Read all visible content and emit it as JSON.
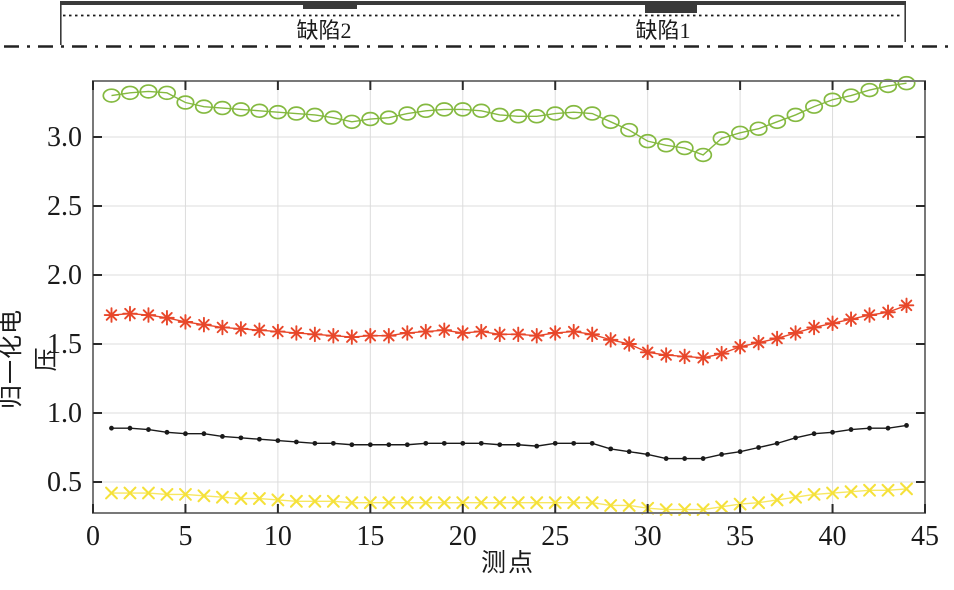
{
  "schematic": {
    "defect1_label": "缺陷1",
    "defect2_label": "缺陷2"
  },
  "colors": {
    "green_series": "#84b940",
    "red_series": "#e8472a",
    "black_series": "#1a1a1a",
    "yellow_series": "#f5e13a",
    "frame": "#787878",
    "grid": "#dcdcdc",
    "tick": "#2a2a2a",
    "defect_fill": "#3a3a3a"
  },
  "chart_data": {
    "type": "line",
    "title": "",
    "xlabel": "测点",
    "ylabel": "归一化电压",
    "xlim": [
      0,
      45
    ],
    "ylim": [
      0.28,
      3.41
    ],
    "xticks": [
      0,
      5,
      10,
      15,
      20,
      25,
      30,
      35,
      40,
      45
    ],
    "yticks": [
      0.5,
      1.0,
      1.5,
      2.0,
      2.5,
      3.0
    ],
    "yticklabels": [
      "0.5",
      "1.0",
      "1.5",
      "2.0",
      "2.5",
      "3.0"
    ],
    "grid": true,
    "legend_position": "none",
    "x": [
      1,
      2,
      3,
      4,
      5,
      6,
      7,
      8,
      9,
      10,
      11,
      12,
      13,
      14,
      15,
      16,
      17,
      18,
      19,
      20,
      21,
      22,
      23,
      24,
      25,
      26,
      27,
      28,
      29,
      30,
      31,
      32,
      33,
      34,
      35,
      36,
      37,
      38,
      39,
      40,
      41,
      42,
      43,
      44
    ],
    "series": [
      {
        "name": "green-circle-series",
        "marker": "circle",
        "color": "#84b940",
        "values": [
          3.3,
          3.32,
          3.33,
          3.32,
          3.25,
          3.22,
          3.21,
          3.2,
          3.19,
          3.18,
          3.17,
          3.16,
          3.14,
          3.11,
          3.13,
          3.14,
          3.17,
          3.19,
          3.2,
          3.2,
          3.19,
          3.16,
          3.15,
          3.15,
          3.17,
          3.18,
          3.17,
          3.11,
          3.05,
          2.97,
          2.94,
          2.92,
          2.87,
          2.99,
          3.03,
          3.06,
          3.11,
          3.16,
          3.22,
          3.27,
          3.3,
          3.34,
          3.37,
          3.39
        ]
      },
      {
        "name": "red-asterisk-series",
        "marker": "asterisk",
        "color": "#e8472a",
        "values": [
          1.71,
          1.72,
          1.71,
          1.69,
          1.66,
          1.64,
          1.62,
          1.61,
          1.6,
          1.59,
          1.58,
          1.57,
          1.56,
          1.55,
          1.56,
          1.56,
          1.58,
          1.59,
          1.6,
          1.58,
          1.59,
          1.57,
          1.57,
          1.56,
          1.58,
          1.59,
          1.57,
          1.53,
          1.5,
          1.44,
          1.42,
          1.41,
          1.4,
          1.43,
          1.48,
          1.51,
          1.54,
          1.58,
          1.62,
          1.65,
          1.68,
          1.71,
          1.73,
          1.78
        ]
      },
      {
        "name": "black-dot-series",
        "marker": "dot",
        "color": "#1a1a1a",
        "values": [
          0.89,
          0.89,
          0.88,
          0.86,
          0.85,
          0.85,
          0.83,
          0.82,
          0.81,
          0.8,
          0.79,
          0.78,
          0.78,
          0.77,
          0.77,
          0.77,
          0.77,
          0.78,
          0.78,
          0.78,
          0.78,
          0.77,
          0.77,
          0.76,
          0.78,
          0.78,
          0.78,
          0.74,
          0.72,
          0.7,
          0.67,
          0.67,
          0.67,
          0.7,
          0.72,
          0.75,
          0.78,
          0.82,
          0.85,
          0.86,
          0.88,
          0.89,
          0.89,
          0.91
        ]
      },
      {
        "name": "yellow-x-series",
        "marker": "x",
        "color": "#f5e13a",
        "values": [
          0.42,
          0.42,
          0.42,
          0.41,
          0.41,
          0.4,
          0.39,
          0.38,
          0.38,
          0.37,
          0.36,
          0.36,
          0.36,
          0.35,
          0.35,
          0.35,
          0.35,
          0.35,
          0.35,
          0.35,
          0.35,
          0.35,
          0.35,
          0.35,
          0.35,
          0.35,
          0.35,
          0.33,
          0.33,
          0.31,
          0.3,
          0.3,
          0.3,
          0.32,
          0.34,
          0.35,
          0.37,
          0.39,
          0.41,
          0.42,
          0.43,
          0.44,
          0.44,
          0.45
        ]
      }
    ]
  }
}
